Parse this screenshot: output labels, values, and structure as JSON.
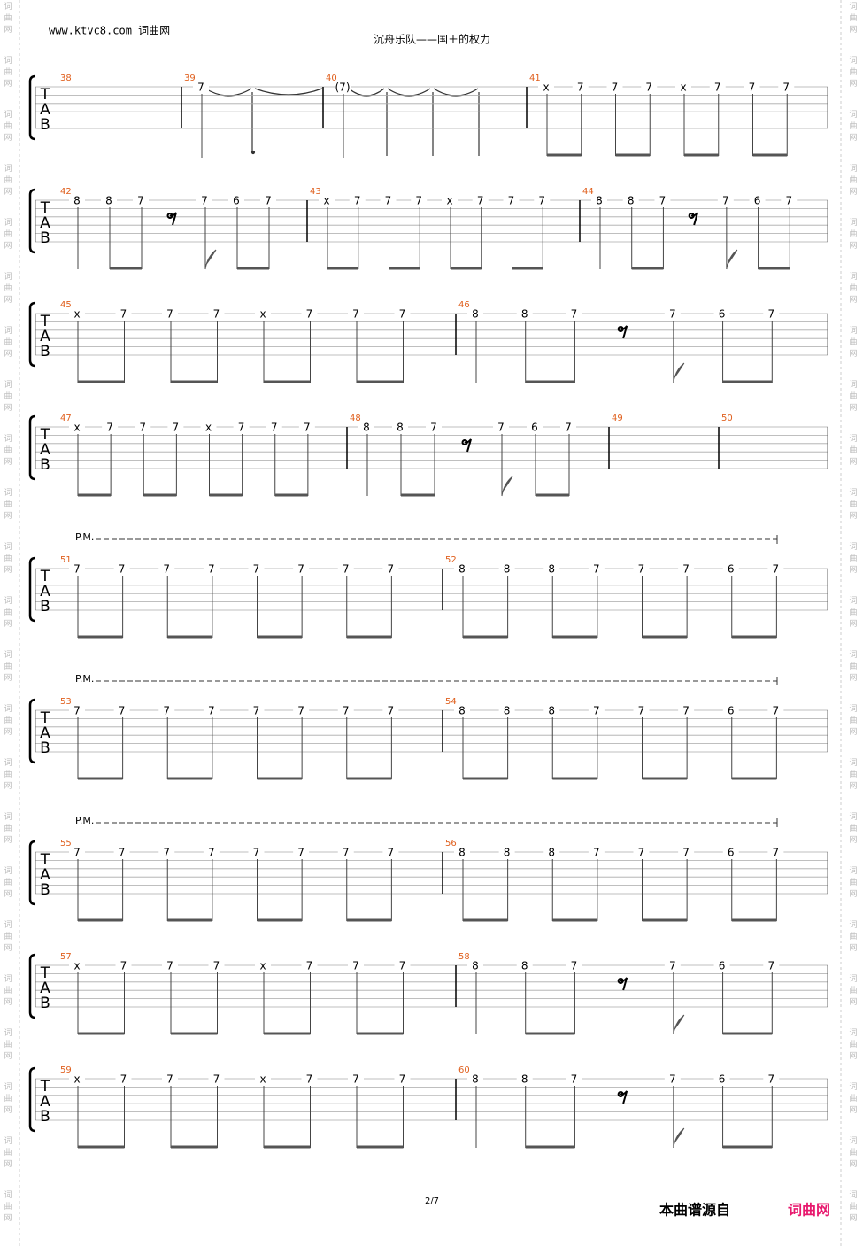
{
  "header": {
    "site": "www.ktvc8.com 词曲网",
    "title": "沉舟乐队——国王的权力"
  },
  "watermark": "词曲网",
  "tab_clef": [
    "T",
    "A",
    "B"
  ],
  "palm_mute_label": "P.M.",
  "systems": [
    {
      "measures": [
        {
          "number": "38",
          "notes": []
        },
        {
          "number": "39",
          "notes": [
            "7"
          ]
        },
        {
          "number": "40",
          "notes": [
            "(7)"
          ]
        },
        {
          "number": "41",
          "notes": [
            "x",
            "7",
            "7",
            "7",
            "x",
            "7",
            "7",
            "7"
          ]
        }
      ]
    },
    {
      "measures": [
        {
          "number": "42",
          "notes": [
            "8",
            "8",
            "7",
            null,
            "7",
            "6",
            "7"
          ]
        },
        {
          "number": "43",
          "notes": [
            "x",
            "7",
            "7",
            "7",
            "x",
            "7",
            "7",
            "7"
          ]
        },
        {
          "number": "44",
          "notes": [
            "8",
            "8",
            "7",
            null,
            "7",
            "6",
            "7"
          ]
        }
      ]
    },
    {
      "measures": [
        {
          "number": "45",
          "notes": [
            "x",
            "7",
            "7",
            "7",
            "x",
            "7",
            "7",
            "7"
          ]
        },
        {
          "number": "46",
          "notes": [
            "8",
            "8",
            "7",
            null,
            "7",
            "6",
            "7"
          ]
        }
      ]
    },
    {
      "measures": [
        {
          "number": "47",
          "notes": [
            "x",
            "7",
            "7",
            "7",
            "x",
            "7",
            "7",
            "7"
          ]
        },
        {
          "number": "48",
          "notes": [
            "8",
            "8",
            "7",
            null,
            "7",
            "6",
            "7"
          ]
        },
        {
          "number": "49",
          "notes": []
        },
        {
          "number": "50",
          "notes": []
        }
      ]
    },
    {
      "palm_mute": true,
      "measures": [
        {
          "number": "51",
          "notes": [
            "7",
            "7",
            "7",
            "7",
            "7",
            "7",
            "7",
            "7"
          ]
        },
        {
          "number": "52",
          "notes": [
            "8",
            "8",
            "8",
            "7",
            "7",
            "7",
            "6",
            "7"
          ]
        }
      ]
    },
    {
      "palm_mute": true,
      "measures": [
        {
          "number": "53",
          "notes": [
            "7",
            "7",
            "7",
            "7",
            "7",
            "7",
            "7",
            "7"
          ]
        },
        {
          "number": "54",
          "notes": [
            "8",
            "8",
            "8",
            "7",
            "7",
            "7",
            "6",
            "7"
          ]
        }
      ]
    },
    {
      "palm_mute": true,
      "measures": [
        {
          "number": "55",
          "notes": [
            "7",
            "7",
            "7",
            "7",
            "7",
            "7",
            "7",
            "7"
          ]
        },
        {
          "number": "56",
          "notes": [
            "8",
            "8",
            "8",
            "7",
            "7",
            "7",
            "6",
            "7"
          ]
        }
      ]
    },
    {
      "measures": [
        {
          "number": "57",
          "notes": [
            "x",
            "7",
            "7",
            "7",
            "x",
            "7",
            "7",
            "7"
          ]
        },
        {
          "number": "58",
          "notes": [
            "8",
            "8",
            "7",
            null,
            "7",
            "6",
            "7"
          ]
        }
      ]
    },
    {
      "measures": [
        {
          "number": "59",
          "notes": [
            "x",
            "7",
            "7",
            "7",
            "x",
            "7",
            "7",
            "7"
          ]
        },
        {
          "number": "60",
          "notes": [
            "8",
            "8",
            "7",
            null,
            "7",
            "6",
            "7"
          ]
        }
      ]
    }
  ],
  "footer": {
    "page": "2/7",
    "source": "本曲谱源自",
    "source_site": "词曲网"
  }
}
